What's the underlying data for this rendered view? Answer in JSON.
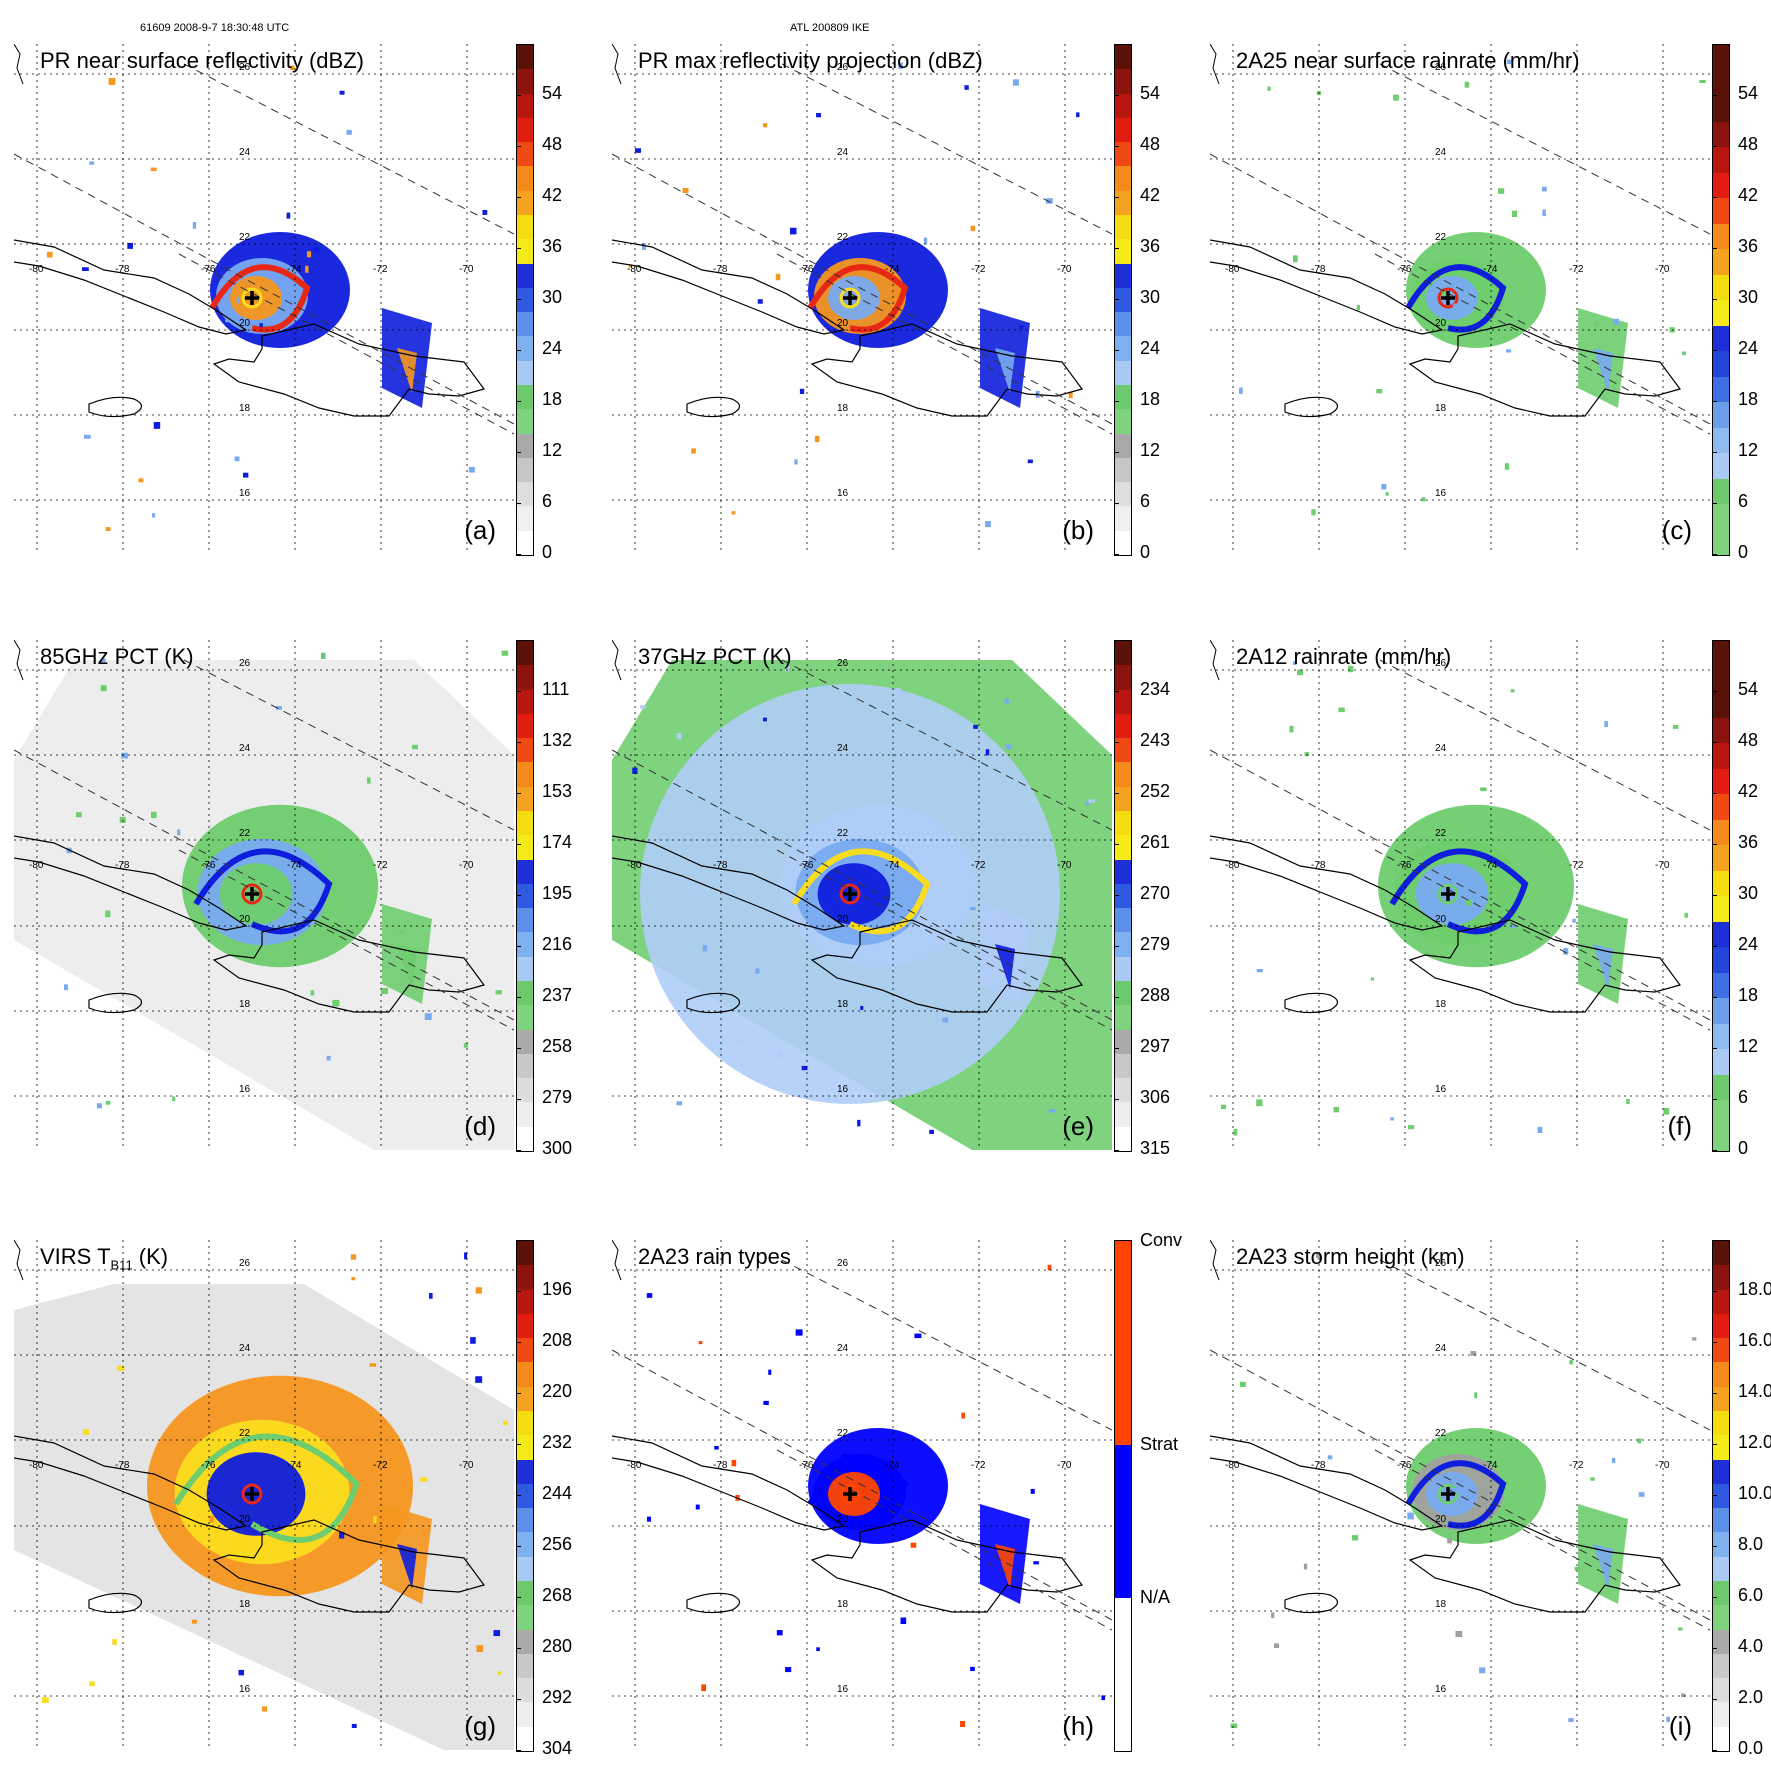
{
  "header": {
    "left": "61609 2008-9-7 18:30:48 UTC",
    "center": "ATL 200809 IKE"
  },
  "coords": {
    "lon_labels": [
      "-80",
      "-78",
      "-76",
      "-74",
      "-72",
      "-70"
    ],
    "lat_labels": [
      "26",
      "24",
      "22",
      "20",
      "18",
      "16"
    ]
  },
  "panels": [
    {
      "id": "a",
      "label": "(a)",
      "title": "PR near surface reflectivity (dBZ)",
      "sub": "",
      "unit": "",
      "scale": [
        "0",
        "6",
        "12",
        "18",
        "24",
        "30",
        "36",
        "42",
        "48",
        "54"
      ],
      "colors": [
        "#ffffff",
        "#efefef",
        "#dddddd",
        "#c6c6c6",
        "#a9a9a9",
        "#7fd37f",
        "#6cc96c",
        "#a9c8f2",
        "#7fb0ef",
        "#5b8fe8",
        "#2f59e0",
        "#1f2fd8",
        "#f5ea18",
        "#f5dc10",
        "#f5a31e",
        "#f58a1c",
        "#f04a14",
        "#e21e10",
        "#b8160e",
        "#8b140e",
        "#5a1208"
      ],
      "fields": [
        "rgb(14,30,220)",
        "rgb(120,170,240)",
        "rgb(245,150,30)",
        "rgb(230,40,20)",
        "rgb(250,220,30)"
      ],
      "coverage": "pr"
    },
    {
      "id": "b",
      "label": "(b)",
      "title": "PR max reflectivity projection (dBZ)",
      "sub": "",
      "unit": "",
      "scale": [
        "0",
        "6",
        "12",
        "18",
        "24",
        "30",
        "36",
        "42",
        "48",
        "54"
      ],
      "colors": [
        "#ffffff",
        "#efefef",
        "#dddddd",
        "#c6c6c6",
        "#a9a9a9",
        "#7fd37f",
        "#6cc96c",
        "#a9c8f2",
        "#7fb0ef",
        "#5b8fe8",
        "#2f59e0",
        "#1f2fd8",
        "#f5ea18",
        "#f5dc10",
        "#f5a31e",
        "#f58a1c",
        "#f04a14",
        "#e21e10",
        "#b8160e",
        "#8b140e",
        "#5a1208"
      ],
      "fields": [
        "rgb(14,30,220)",
        "rgb(245,150,30)",
        "rgb(120,170,240)",
        "rgb(230,40,20)",
        "rgb(250,220,30)"
      ],
      "coverage": "pr"
    },
    {
      "id": "c",
      "label": "(c)",
      "title": "2A25 near surface rainrate (mm/hr)",
      "sub": "",
      "unit": "",
      "scale": [
        "0",
        "6",
        "12",
        "18",
        "24",
        "30",
        "36",
        "42",
        "48",
        "54"
      ],
      "colors": [
        "#7fd37f",
        "#7fd37f",
        "#6cc96c",
        "#a9c8f2",
        "#8fbaf0",
        "#6a9eeb",
        "#3f6fe3",
        "#2345db",
        "#1f2fd8",
        "#f5ea18",
        "#f5dc10",
        "#f5a31e",
        "#f58a1c",
        "#f04a14",
        "#e21e10",
        "#b8160e",
        "#8b140e",
        "#5a1208",
        "#5a1208",
        "#5a1208"
      ],
      "fields": [
        "rgb(110,205,110)",
        "rgb(110,205,110)",
        "rgb(120,170,240)",
        "rgb(14,30,220)",
        "rgb(230,40,20)"
      ],
      "coverage": "pr"
    },
    {
      "id": "d",
      "label": "(d)",
      "title": "85GHz PCT (K)",
      "sub": "",
      "unit": "",
      "scale": [
        "300",
        "279",
        "258",
        "237",
        "216",
        "195",
        "174",
        "153",
        "132",
        "111"
      ],
      "colors": [
        "#ffffff",
        "#eeeeee",
        "#dcdcdc",
        "#c8c8c8",
        "#aaaaaa",
        "#7fd37f",
        "#6cc96c",
        "#a9c8f2",
        "#7fb0ef",
        "#5b8fe8",
        "#2f59e0",
        "#1f2fd8",
        "#f5ea18",
        "#f5dc10",
        "#f5a31e",
        "#f58a1c",
        "#f04a14",
        "#e21e10",
        "#b8160e",
        "#8b140e",
        "#5a1208"
      ],
      "fields": [
        "rgb(110,205,110)",
        "rgb(120,170,240)",
        "rgb(110,205,110)",
        "rgb(14,30,220)",
        "rgb(230,40,20)"
      ],
      "coverage": "tmi_gray"
    },
    {
      "id": "e",
      "label": "(e)",
      "title": "37GHz PCT (K)",
      "sub": "",
      "unit": "",
      "scale": [
        "315",
        "306",
        "297",
        "288",
        "279",
        "270",
        "261",
        "252",
        "243",
        "234"
      ],
      "colors": [
        "#ffffff",
        "#eeeeee",
        "#dcdcdc",
        "#c8c8c8",
        "#aaaaaa",
        "#7fd37f",
        "#6cc96c",
        "#a9c8f2",
        "#7fb0ef",
        "#5b8fe8",
        "#2f59e0",
        "#1f2fd8",
        "#f5ea18",
        "#f5dc10",
        "#f5a31e",
        "#f58a1c",
        "#f04a14",
        "#e21e10",
        "#b8160e",
        "#8b140e",
        "#5a1208"
      ],
      "fields": [
        "rgb(175,205,248)",
        "rgb(120,170,240)",
        "rgb(14,30,220)",
        "rgb(250,220,30)",
        "rgb(230,40,20)"
      ],
      "coverage": "tmi_green"
    },
    {
      "id": "f",
      "label": "(f)",
      "title": "2A12 rainrate (mm/hr)",
      "sub": "",
      "unit": "",
      "scale": [
        "0",
        "6",
        "12",
        "18",
        "24",
        "30",
        "36",
        "42",
        "48",
        "54"
      ],
      "colors": [
        "#7fd37f",
        "#7fd37f",
        "#6cc96c",
        "#a9c8f2",
        "#8fbaf0",
        "#6a9eeb",
        "#3f6fe3",
        "#2345db",
        "#1f2fd8",
        "#f5ea18",
        "#f5dc10",
        "#f5a31e",
        "#f58a1c",
        "#f04a14",
        "#e21e10",
        "#b8160e",
        "#8b140e",
        "#5a1208",
        "#5a1208",
        "#5a1208"
      ],
      "fields": [
        "rgb(110,205,110)",
        "rgb(110,205,110)",
        "rgb(120,170,240)",
        "rgb(14,30,220)",
        "rgb(110,205,110)"
      ],
      "coverage": "tmi"
    },
    {
      "id": "g",
      "label": "(g)",
      "title": "VIRS T",
      "sub": "B11",
      "unit": " (K)",
      "scale": [
        "304",
        "292",
        "280",
        "268",
        "256",
        "244",
        "232",
        "220",
        "208",
        "196"
      ],
      "colors": [
        "#ffffff",
        "#eeeeee",
        "#dcdcdc",
        "#c8c8c8",
        "#aaaaaa",
        "#7fd37f",
        "#6cc96c",
        "#a9c8f2",
        "#7fb0ef",
        "#5b8fe8",
        "#2f59e0",
        "#1f2fd8",
        "#f5ea18",
        "#f5dc10",
        "#f5a31e",
        "#f58a1c",
        "#f04a14",
        "#e21e10",
        "#b8160e",
        "#8b140e",
        "#5a1208"
      ],
      "fields": [
        "rgb(245,150,30)",
        "rgb(250,220,30)",
        "rgb(14,30,220)",
        "rgb(110,205,110)",
        "rgb(230,40,20)"
      ],
      "coverage": "virs"
    },
    {
      "id": "h",
      "label": "(h)",
      "title": "2A23 rain types",
      "sub": "",
      "unit": "",
      "scale": [
        "N/A",
        "Strat",
        "Conv"
      ],
      "colors": [
        "#ffffff",
        "#0000ff",
        "#ff4500"
      ],
      "fields": [
        "rgb(0,0,255)",
        "rgb(0,0,255)",
        "rgb(255,69,0)",
        "rgb(0,0,255)",
        "rgb(255,69,0)"
      ],
      "coverage": "pr"
    },
    {
      "id": "i",
      "label": "(i)",
      "title": "2A23 storm height (km)",
      "sub": "",
      "unit": "",
      "scale": [
        "0.0",
        "2.0",
        "4.0",
        "6.0",
        "8.0",
        "10.0",
        "12.0",
        "14.0",
        "16.0",
        "18.0"
      ],
      "colors": [
        "#ffffff",
        "#eeeeee",
        "#dcdcdc",
        "#c8c8c8",
        "#aaaaaa",
        "#7fd37f",
        "#6cc96c",
        "#a9c8f2",
        "#7fb0ef",
        "#5b8fe8",
        "#2f59e0",
        "#1f2fd8",
        "#f5ea18",
        "#f5dc10",
        "#f5a31e",
        "#f58a1c",
        "#f04a14",
        "#e21e10",
        "#b8160e",
        "#8b140e",
        "#5a1208"
      ],
      "fields": [
        "rgb(110,205,110)",
        "rgb(160,160,160)",
        "rgb(120,170,240)",
        "rgb(14,30,220)",
        "rgb(110,205,110)"
      ],
      "coverage": "pr"
    }
  ]
}
